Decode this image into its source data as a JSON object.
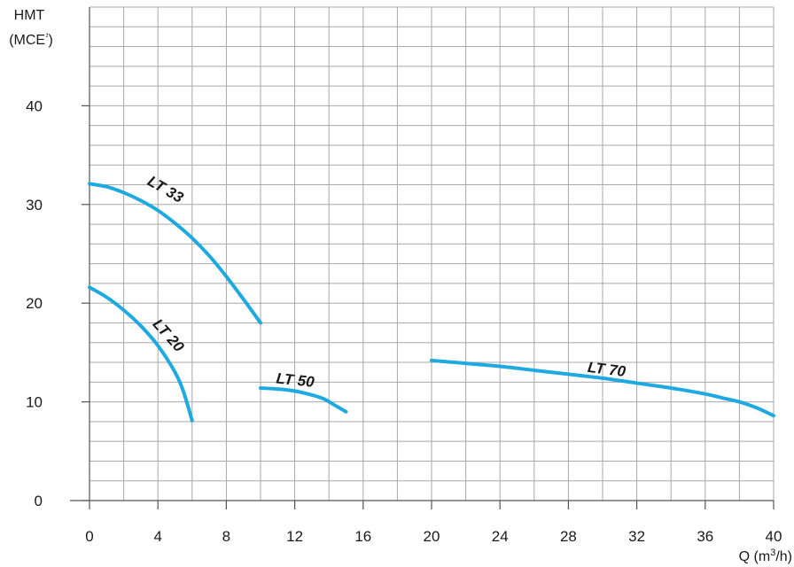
{
  "chart_data": {
    "type": "line",
    "title": "",
    "ylabel_line1": "HMT",
    "ylabel_line2": "(MCE",
    "ylabel_sup": "¹",
    "ylabel_close": ")",
    "xlabel_main": "Q (m",
    "xlabel_sup": "3",
    "xlabel_close": "/h)",
    "xlim": [
      0,
      40
    ],
    "ylim": [
      0,
      50
    ],
    "x_ticks": [
      "0",
      "4",
      "8",
      "12",
      "16",
      "20",
      "24",
      "28",
      "32",
      "36",
      "40"
    ],
    "y_ticks": [
      "0",
      "10",
      "20",
      "30",
      "40"
    ],
    "grid": true,
    "colors": {
      "series": "#1fa9e1",
      "grid": "#a8a8a8",
      "axis": "#555555"
    },
    "series": [
      {
        "name": "LT 33",
        "x": [
          0,
          1,
          2,
          3,
          4,
          5,
          6,
          7,
          8,
          9,
          10
        ],
        "y": [
          32.1,
          31.8,
          31.2,
          30.4,
          29.4,
          28.1,
          26.6,
          24.8,
          22.7,
          20.4,
          18.0
        ]
      },
      {
        "name": "LT 20",
        "x": [
          0,
          1,
          2,
          3,
          4,
          5,
          5.5,
          6
        ],
        "y": [
          21.6,
          20.6,
          19.3,
          17.7,
          15.7,
          13.0,
          11.0,
          8.1
        ]
      },
      {
        "name": "LT 50",
        "x": [
          10,
          11,
          12,
          13,
          13.7,
          14.3,
          15
        ],
        "y": [
          11.4,
          11.3,
          11.1,
          10.7,
          10.3,
          9.7,
          9.0
        ]
      },
      {
        "name": "LT 70",
        "x": [
          20,
          22,
          24,
          26,
          28,
          30,
          32,
          34,
          36,
          37,
          38,
          39,
          40
        ],
        "y": [
          14.2,
          13.9,
          13.6,
          13.2,
          12.8,
          12.4,
          11.9,
          11.4,
          10.8,
          10.4,
          10.0,
          9.4,
          8.6
        ]
      }
    ]
  }
}
